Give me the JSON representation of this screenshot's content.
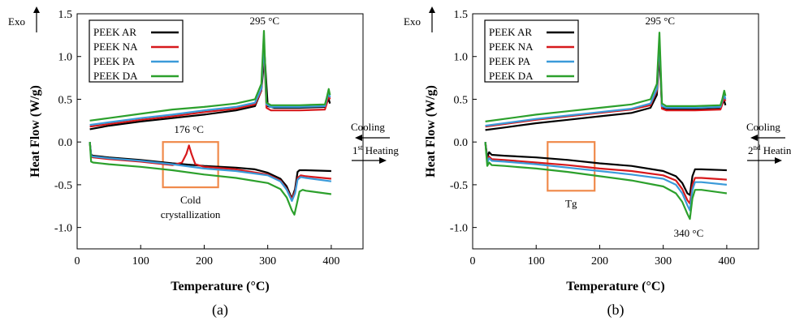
{
  "chart_data": [
    {
      "type": "line",
      "panel_label": "(a)",
      "xlabel": "Temperature (°C)",
      "ylabel": "Heat Flow (W/g)",
      "exo_label": "Exo",
      "xlim": [
        0,
        450
      ],
      "ylim": [
        -1.25,
        1.5
      ],
      "xticks": [
        0,
        100,
        200,
        300,
        400
      ],
      "yticks": [
        -1.0,
        -0.5,
        0.0,
        0.5,
        1.0,
        1.5
      ],
      "yticklabels": [
        "-1.0",
        "-0.5",
        "0.0",
        "0.5",
        "1.0",
        "1.5"
      ],
      "grid": false,
      "legend_position": "top-left",
      "annotations": {
        "peak": "295 °C",
        "cold_cryst_peak": "176 °C",
        "cooling": "Cooling",
        "heating_num": "1",
        "heating_sup": "st",
        "heating_word": " Heating",
        "box_label_line1": "Cold",
        "box_label_line2": "crystallization"
      },
      "box_region": {
        "x": [
          135,
          222
        ],
        "y": [
          -0.53,
          0.0
        ]
      },
      "series": [
        {
          "name": "PEEK AR",
          "color": "#000000",
          "cooling": {
            "x": [
              20,
              50,
              100,
              150,
              200,
              250,
              280,
              290,
              295,
              300,
              310,
              350,
              390,
              393,
              396,
              398
            ],
            "y": [
              0.15,
              0.19,
              0.24,
              0.28,
              0.32,
              0.37,
              0.42,
              0.6,
              1.02,
              0.42,
              0.4,
              0.4,
              0.41,
              0.46,
              0.5,
              0.45
            ]
          },
          "heating": {
            "x": [
              20,
              22,
              25,
              50,
              100,
              150,
              200,
              250,
              280,
              300,
              320,
              330,
              338,
              343,
              347,
              350,
              360,
              400
            ],
            "y": [
              0.0,
              -0.15,
              -0.16,
              -0.18,
              -0.21,
              -0.25,
              -0.28,
              -0.3,
              -0.32,
              -0.36,
              -0.43,
              -0.52,
              -0.66,
              -0.55,
              -0.35,
              -0.33,
              -0.33,
              -0.34
            ]
          }
        },
        {
          "name": "PEEK NA",
          "color": "#d7191c",
          "cooling": {
            "x": [
              20,
              50,
              100,
              150,
              200,
              250,
              280,
              290,
              294,
              298,
              305,
              350,
              390,
              393,
              396,
              398
            ],
            "y": [
              0.18,
              0.21,
              0.26,
              0.3,
              0.35,
              0.39,
              0.44,
              0.6,
              1.1,
              0.4,
              0.37,
              0.37,
              0.38,
              0.45,
              0.55,
              0.5
            ]
          },
          "heating": {
            "x": [
              20,
              22,
              25,
              50,
              100,
              150,
              165,
              172,
              176,
              180,
              186,
              200,
              250,
              300,
              320,
              330,
              338,
              343,
              347,
              352,
              360,
              400
            ],
            "y": [
              0.0,
              -0.17,
              -0.18,
              -0.2,
              -0.23,
              -0.27,
              -0.24,
              -0.14,
              -0.04,
              -0.14,
              -0.26,
              -0.29,
              -0.32,
              -0.38,
              -0.45,
              -0.55,
              -0.67,
              -0.58,
              -0.42,
              -0.39,
              -0.4,
              -0.43
            ]
          }
        },
        {
          "name": "PEEK PA",
          "color": "#3a9ad9",
          "cooling": {
            "x": [
              20,
              50,
              100,
              150,
              200,
              250,
              280,
              290,
              294,
              298,
              305,
              350,
              390,
              393,
              396,
              398
            ],
            "y": [
              0.2,
              0.23,
              0.28,
              0.32,
              0.37,
              0.41,
              0.46,
              0.62,
              1.15,
              0.44,
              0.41,
              0.41,
              0.42,
              0.5,
              0.58,
              0.52
            ]
          },
          "heating": {
            "x": [
              20,
              22,
              25,
              50,
              100,
              150,
              200,
              250,
              300,
              320,
              330,
              338,
              343,
              347,
              352,
              360,
              400
            ],
            "y": [
              0.0,
              -0.16,
              -0.17,
              -0.19,
              -0.22,
              -0.26,
              -0.31,
              -0.34,
              -0.39,
              -0.46,
              -0.56,
              -0.69,
              -0.6,
              -0.44,
              -0.41,
              -0.42,
              -0.46
            ]
          }
        },
        {
          "name": "PEEK DA",
          "color": "#2ca02c",
          "cooling": {
            "x": [
              20,
              50,
              100,
              150,
              200,
              250,
              280,
              290,
              294,
              298,
              305,
              350,
              390,
              393,
              396,
              398
            ],
            "y": [
              0.25,
              0.28,
              0.33,
              0.38,
              0.41,
              0.45,
              0.5,
              0.68,
              1.3,
              0.46,
              0.43,
              0.43,
              0.44,
              0.52,
              0.62,
              0.55
            ]
          },
          "heating": {
            "x": [
              20,
              22,
              25,
              50,
              100,
              150,
              200,
              250,
              300,
              320,
              330,
              338,
              342,
              346,
              350,
              355,
              360,
              400
            ],
            "y": [
              0.0,
              -0.23,
              -0.24,
              -0.26,
              -0.29,
              -0.33,
              -0.38,
              -0.42,
              -0.48,
              -0.55,
              -0.65,
              -0.8,
              -0.85,
              -0.72,
              -0.58,
              -0.56,
              -0.57,
              -0.61
            ]
          }
        }
      ]
    },
    {
      "type": "line",
      "panel_label": "(b)",
      "xlabel": "Temperature (°C)",
      "ylabel": "Heat Flow (W/g)",
      "exo_label": "Exo",
      "xlim": [
        0,
        450
      ],
      "ylim": [
        -1.25,
        1.5
      ],
      "xticks": [
        0,
        100,
        200,
        300,
        400
      ],
      "yticks": [
        -1.0,
        -0.5,
        0.0,
        0.5,
        1.0,
        1.5
      ],
      "yticklabels": [
        "-1.0",
        "-0.5",
        "0.0",
        "0.5",
        "1.0",
        "1.5"
      ],
      "grid": false,
      "legend_position": "top-left",
      "annotations": {
        "peak": "295 °C",
        "melt_peak": "340 °C",
        "cooling": "Cooling",
        "heating_num": "2",
        "heating_sup": "nd",
        "heating_word": " Heating",
        "box_label_line1": "Tg"
      },
      "box_region": {
        "x": [
          118,
          192
        ],
        "y": [
          -0.57,
          -0.0
        ]
      },
      "series": [
        {
          "name": "PEEK AR",
          "color": "#000000",
          "cooling": {
            "x": [
              20,
              50,
              100,
              150,
              200,
              250,
              280,
              290,
              294,
              298,
              305,
              350,
              390,
              393,
              396,
              398
            ],
            "y": [
              0.14,
              0.17,
              0.22,
              0.26,
              0.3,
              0.34,
              0.4,
              0.55,
              1.03,
              0.4,
              0.38,
              0.38,
              0.39,
              0.45,
              0.48,
              0.43
            ]
          },
          "heating": {
            "x": [
              20,
              23,
              26,
              30,
              50,
              100,
              150,
              200,
              250,
              300,
              320,
              330,
              338,
              342,
              346,
              350,
              360,
              400
            ],
            "y": [
              0.0,
              -0.18,
              -0.12,
              -0.15,
              -0.16,
              -0.18,
              -0.21,
              -0.25,
              -0.28,
              -0.34,
              -0.4,
              -0.48,
              -0.6,
              -0.62,
              -0.4,
              -0.32,
              -0.32,
              -0.33
            ]
          }
        },
        {
          "name": "PEEK NA",
          "color": "#d7191c",
          "cooling": {
            "x": [
              20,
              50,
              100,
              150,
              200,
              250,
              280,
              290,
              294,
              298,
              305,
              350,
              390,
              393,
              396,
              398
            ],
            "y": [
              0.18,
              0.21,
              0.26,
              0.3,
              0.34,
              0.38,
              0.43,
              0.6,
              1.12,
              0.39,
              0.37,
              0.37,
              0.38,
              0.44,
              0.52,
              0.48
            ]
          },
          "heating": {
            "x": [
              20,
              23,
              26,
              30,
              50,
              100,
              150,
              200,
              250,
              300,
              320,
              330,
              338,
              342,
              346,
              350,
              360,
              400
            ],
            "y": [
              0.0,
              -0.22,
              -0.17,
              -0.2,
              -0.21,
              -0.24,
              -0.27,
              -0.31,
              -0.34,
              -0.39,
              -0.45,
              -0.55,
              -0.68,
              -0.72,
              -0.5,
              -0.42,
              -0.42,
              -0.44
            ]
          }
        },
        {
          "name": "PEEK PA",
          "color": "#3a9ad9",
          "cooling": {
            "x": [
              20,
              50,
              100,
              150,
              200,
              250,
              280,
              290,
              294,
              298,
              305,
              350,
              390,
              393,
              396,
              398
            ],
            "y": [
              0.19,
              0.22,
              0.27,
              0.31,
              0.35,
              0.39,
              0.45,
              0.62,
              1.18,
              0.42,
              0.4,
              0.4,
              0.41,
              0.48,
              0.56,
              0.5
            ]
          },
          "heating": {
            "x": [
              20,
              23,
              26,
              30,
              50,
              100,
              150,
              200,
              250,
              300,
              320,
              330,
              338,
              342,
              346,
              350,
              360,
              400
            ],
            "y": [
              0.0,
              -0.24,
              -0.19,
              -0.22,
              -0.23,
              -0.26,
              -0.3,
              -0.34,
              -0.38,
              -0.43,
              -0.5,
              -0.6,
              -0.74,
              -0.8,
              -0.56,
              -0.47,
              -0.47,
              -0.5
            ]
          }
        },
        {
          "name": "PEEK DA",
          "color": "#2ca02c",
          "cooling": {
            "x": [
              20,
              50,
              100,
              150,
              200,
              250,
              280,
              290,
              294,
              298,
              305,
              350,
              390,
              393,
              396,
              398
            ],
            "y": [
              0.24,
              0.27,
              0.32,
              0.36,
              0.4,
              0.44,
              0.5,
              0.68,
              1.28,
              0.45,
              0.42,
              0.42,
              0.43,
              0.5,
              0.6,
              0.54
            ]
          },
          "heating": {
            "x": [
              20,
              23,
              26,
              30,
              50,
              100,
              150,
              200,
              250,
              300,
              320,
              330,
              338,
              342,
              346,
              350,
              360,
              400
            ],
            "y": [
              0.0,
              -0.28,
              -0.24,
              -0.27,
              -0.28,
              -0.31,
              -0.35,
              -0.4,
              -0.45,
              -0.52,
              -0.6,
              -0.7,
              -0.84,
              -0.9,
              -0.66,
              -0.56,
              -0.56,
              -0.6
            ]
          }
        }
      ]
    }
  ]
}
